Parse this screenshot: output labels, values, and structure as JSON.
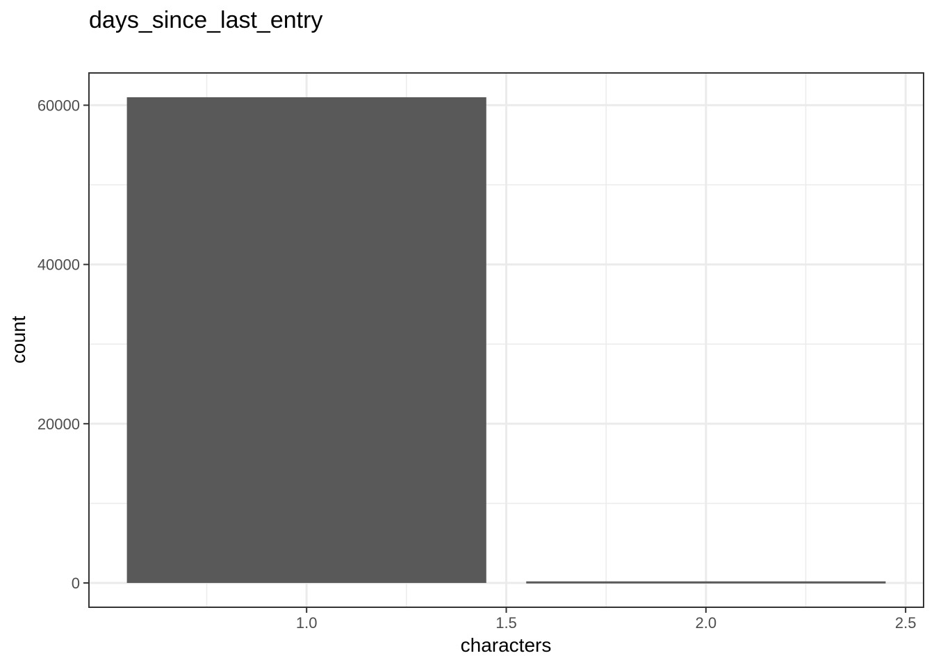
{
  "chart_data": {
    "type": "bar",
    "title": "days_since_last_entry",
    "xlabel": "characters",
    "ylabel": "count",
    "bars": [
      {
        "x": 1,
        "count": 61000
      },
      {
        "x": 2,
        "count": 200
      }
    ],
    "bar_width": 0.9,
    "xlim": [
      0.455,
      2.545
    ],
    "ylim": [
      -3050,
      64050
    ],
    "x_ticks": [
      1.0,
      1.5,
      2.0,
      2.5
    ],
    "x_tick_labels": [
      "1.0",
      "1.5",
      "2.0",
      "2.5"
    ],
    "y_ticks": [
      0,
      20000,
      40000,
      60000
    ],
    "y_tick_labels": [
      "0",
      "20000",
      "40000",
      "60000"
    ],
    "grid": true,
    "bar_color": "#595959"
  }
}
